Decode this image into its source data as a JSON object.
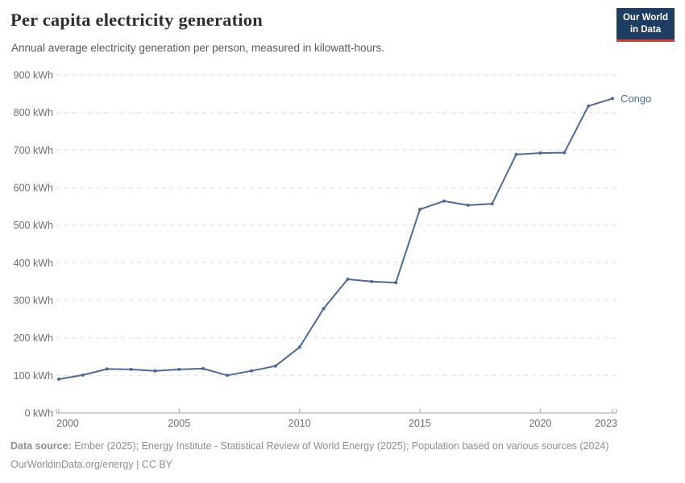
{
  "header": {
    "title": "Per capita electricity generation",
    "subtitle": "Annual average electricity generation per person, measured in kilowatt-hours.",
    "logo": {
      "line1": "Our World",
      "line2": "in Data",
      "bg_color": "#1d3d63",
      "accent_color": "#dc3a34"
    }
  },
  "chart_data": {
    "type": "line",
    "title": "Per capita electricity generation",
    "xlabel": "",
    "ylabel": "kWh",
    "grid": "horizontal-dashed",
    "legend_position": "end-of-line",
    "xlim": [
      2000,
      2023
    ],
    "ylim": [
      0,
      900
    ],
    "x": [
      2000,
      2001,
      2002,
      2003,
      2004,
      2005,
      2006,
      2007,
      2008,
      2009,
      2010,
      2011,
      2012,
      2013,
      2014,
      2015,
      2016,
      2017,
      2018,
      2019,
      2020,
      2021,
      2022,
      2023
    ],
    "series": [
      {
        "name": "Congo",
        "color": "#4c6a9c",
        "values": [
          90,
          101,
          117,
          116,
          112,
          116,
          118,
          100,
          112,
          125,
          175,
          278,
          356,
          350,
          347,
          542,
          564,
          553,
          557,
          688,
          692,
          693,
          817,
          837
        ]
      }
    ],
    "x_ticks": [
      2000,
      2005,
      2010,
      2015,
      2020,
      2023
    ],
    "x_tick_labels": [
      "2000",
      "2005",
      "2010",
      "2015",
      "2020",
      "2023"
    ],
    "y_ticks": [
      0,
      100,
      200,
      300,
      400,
      500,
      600,
      700,
      800,
      900
    ],
    "y_tick_labels": [
      "0 kWh",
      "100 kWh",
      "200 kWh",
      "300 kWh",
      "400 kWh",
      "500 kWh",
      "600 kWh",
      "700 kWh",
      "800 kWh",
      "900 kWh"
    ]
  },
  "footer": {
    "data_source_label": "Data source:",
    "data_source_text": " Ember (2025); Energy Institute - Statistical Review of World Energy (2025); Population based on various sources (2024)",
    "credit": "OurWorldinData.org/energy | CC BY"
  }
}
